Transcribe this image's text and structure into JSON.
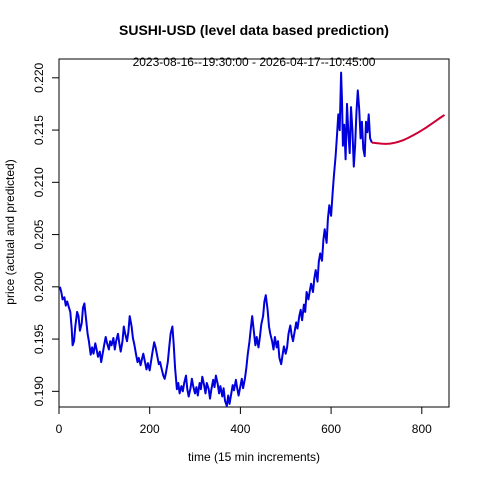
{
  "chart_data": {
    "type": "line",
    "title": "SUSHI-USD (level data based prediction)",
    "subtitle": "2023-08-16--19:30:00  -  2026-04-17--10:45:00",
    "xlabel": "time (15 min increments)",
    "ylabel": "price (actual and predicted)",
    "xlim": [
      0,
      860
    ],
    "ylim": [
      0.1885,
      0.2218
    ],
    "x_ticks": [
      0,
      200,
      400,
      600,
      800
    ],
    "x_tick_labels": [
      "0",
      "200",
      "400",
      "600",
      "800"
    ],
    "y_ticks": [
      0.19,
      0.195,
      0.2,
      0.205,
      0.21,
      0.215,
      0.22
    ],
    "y_tick_labels": [
      "0.190",
      "0.195",
      "0.200",
      "0.205",
      "0.210",
      "0.215",
      "0.220"
    ],
    "grid": false,
    "legend": "none",
    "series": [
      {
        "role": "actual",
        "color": "#0000dd",
        "points": [
          [
            2,
            0.2
          ],
          [
            5,
            0.1995
          ],
          [
            8,
            0.1988
          ],
          [
            12,
            0.199
          ],
          [
            15,
            0.1982
          ],
          [
            18,
            0.1986
          ],
          [
            22,
            0.198
          ],
          [
            25,
            0.1976
          ],
          [
            28,
            0.196
          ],
          [
            30,
            0.1944
          ],
          [
            33,
            0.1948
          ],
          [
            36,
            0.1962
          ],
          [
            40,
            0.1976
          ],
          [
            43,
            0.1972
          ],
          [
            46,
            0.1958
          ],
          [
            50,
            0.1965
          ],
          [
            53,
            0.198
          ],
          [
            56,
            0.1984
          ],
          [
            60,
            0.1968
          ],
          [
            63,
            0.1955
          ],
          [
            66,
            0.1948
          ],
          [
            70,
            0.1935
          ],
          [
            73,
            0.1942
          ],
          [
            76,
            0.1936
          ],
          [
            80,
            0.1946
          ],
          [
            83,
            0.194
          ],
          [
            86,
            0.1933
          ],
          [
            90,
            0.1938
          ],
          [
            93,
            0.1928
          ],
          [
            96,
            0.1935
          ],
          [
            100,
            0.1945
          ],
          [
            103,
            0.1952
          ],
          [
            106,
            0.1946
          ],
          [
            110,
            0.194
          ],
          [
            113,
            0.1948
          ],
          [
            116,
            0.1944
          ],
          [
            120,
            0.1951
          ],
          [
            123,
            0.194
          ],
          [
            126,
            0.1948
          ],
          [
            130,
            0.1955
          ],
          [
            133,
            0.1946
          ],
          [
            136,
            0.1938
          ],
          [
            140,
            0.1948
          ],
          [
            143,
            0.1962
          ],
          [
            146,
            0.1955
          ],
          [
            150,
            0.1948
          ],
          [
            153,
            0.1957
          ],
          [
            156,
            0.1972
          ],
          [
            160,
            0.1962
          ],
          [
            163,
            0.1951
          ],
          [
            166,
            0.1945
          ],
          [
            170,
            0.1935
          ],
          [
            173,
            0.1928
          ],
          [
            176,
            0.1932
          ],
          [
            180,
            0.1925
          ],
          [
            183,
            0.1931
          ],
          [
            186,
            0.1936
          ],
          [
            190,
            0.1927
          ],
          [
            193,
            0.1921
          ],
          [
            196,
            0.1927
          ],
          [
            200,
            0.192
          ],
          [
            203,
            0.1929
          ],
          [
            206,
            0.1937
          ],
          [
            210,
            0.1947
          ],
          [
            213,
            0.1942
          ],
          [
            216,
            0.1935
          ],
          [
            220,
            0.1926
          ],
          [
            223,
            0.1928
          ],
          [
            226,
            0.1922
          ],
          [
            230,
            0.1915
          ],
          [
            233,
            0.1912
          ],
          [
            236,
            0.1918
          ],
          [
            240,
            0.1928
          ],
          [
            243,
            0.1942
          ],
          [
            246,
            0.1955
          ],
          [
            250,
            0.1962
          ],
          [
            253,
            0.1945
          ],
          [
            256,
            0.1922
          ],
          [
            260,
            0.1902
          ],
          [
            263,
            0.1908
          ],
          [
            266,
            0.1898
          ],
          [
            270,
            0.1905
          ],
          [
            273,
            0.19
          ],
          [
            276,
            0.1908
          ],
          [
            280,
            0.1915
          ],
          [
            283,
            0.1902
          ],
          [
            286,
            0.1895
          ],
          [
            290,
            0.1903
          ],
          [
            293,
            0.1912
          ],
          [
            296,
            0.1905
          ],
          [
            300,
            0.1898
          ],
          [
            303,
            0.1904
          ],
          [
            306,
            0.1896
          ],
          [
            310,
            0.1908
          ],
          [
            313,
            0.1902
          ],
          [
            316,
            0.1914
          ],
          [
            320,
            0.1906
          ],
          [
            323,
            0.1898
          ],
          [
            326,
            0.1908
          ],
          [
            330,
            0.1902
          ],
          [
            333,
            0.1893
          ],
          [
            336,
            0.1902
          ],
          [
            340,
            0.1911
          ],
          [
            343,
            0.1904
          ],
          [
            346,
            0.1915
          ],
          [
            350,
            0.1907
          ],
          [
            353,
            0.1898
          ],
          [
            356,
            0.1905
          ],
          [
            360,
            0.1895
          ],
          [
            363,
            0.1903
          ],
          [
            366,
            0.1891
          ],
          [
            370,
            0.1886
          ],
          [
            373,
            0.1896
          ],
          [
            376,
            0.1888
          ],
          [
            380,
            0.1898
          ],
          [
            383,
            0.1906
          ],
          [
            386,
            0.1901
          ],
          [
            390,
            0.1911
          ],
          [
            393,
            0.1903
          ],
          [
            396,
            0.1896
          ],
          [
            400,
            0.1905
          ],
          [
            403,
            0.1912
          ],
          [
            406,
            0.1903
          ],
          [
            410,
            0.1912
          ],
          [
            413,
            0.1922
          ],
          [
            416,
            0.1935
          ],
          [
            420,
            0.1948
          ],
          [
            423,
            0.196
          ],
          [
            426,
            0.1972
          ],
          [
            430,
            0.1956
          ],
          [
            433,
            0.1944
          ],
          [
            436,
            0.1952
          ],
          [
            440,
            0.1942
          ],
          [
            443,
            0.1952
          ],
          [
            446,
            0.1964
          ],
          [
            450,
            0.1972
          ],
          [
            453,
            0.1986
          ],
          [
            456,
            0.1992
          ],
          [
            460,
            0.1978
          ],
          [
            463,
            0.1962
          ],
          [
            466,
            0.1955
          ],
          [
            470,
            0.1948
          ],
          [
            473,
            0.194
          ],
          [
            476,
            0.1952
          ],
          [
            480,
            0.1942
          ],
          [
            483,
            0.1948
          ],
          [
            486,
            0.1932
          ],
          [
            490,
            0.1926
          ],
          [
            493,
            0.1935
          ],
          [
            496,
            0.1943
          ],
          [
            500,
            0.1936
          ],
          [
            503,
            0.1942
          ],
          [
            506,
            0.1955
          ],
          [
            510,
            0.1963
          ],
          [
            513,
            0.1954
          ],
          [
            516,
            0.1948
          ],
          [
            520,
            0.1958
          ],
          [
            523,
            0.1966
          ],
          [
            526,
            0.196
          ],
          [
            530,
            0.1972
          ],
          [
            533,
            0.1978
          ],
          [
            536,
            0.1968
          ],
          [
            540,
            0.1983
          ],
          [
            543,
            0.1976
          ],
          [
            546,
            0.1995
          ],
          [
            550,
            0.1988
          ],
          [
            553,
            0.1996
          ],
          [
            556,
            0.2003
          ],
          [
            560,
            0.1995
          ],
          [
            563,
            0.2008
          ],
          [
            566,
            0.2016
          ],
          [
            570,
            0.2005
          ],
          [
            573,
            0.2024
          ],
          [
            576,
            0.2032
          ],
          [
            580,
            0.2025
          ],
          [
            583,
            0.2045
          ],
          [
            586,
            0.2055
          ],
          [
            590,
            0.2042
          ],
          [
            593,
            0.2065
          ],
          [
            596,
            0.2078
          ],
          [
            600,
            0.2068
          ],
          [
            603,
            0.2088
          ],
          [
            606,
            0.2105
          ],
          [
            610,
            0.2125
          ],
          [
            613,
            0.2145
          ],
          [
            616,
            0.2165
          ],
          [
            619,
            0.215
          ],
          [
            622,
            0.2205
          ],
          [
            624,
            0.2178
          ],
          [
            626,
            0.2135
          ],
          [
            629,
            0.2155
          ],
          [
            632,
            0.2122
          ],
          [
            635,
            0.2175
          ],
          [
            638,
            0.2148
          ],
          [
            641,
            0.2128
          ],
          [
            644,
            0.2172
          ],
          [
            647,
            0.215
          ],
          [
            650,
            0.2115
          ],
          [
            653,
            0.2135
          ],
          [
            656,
            0.2168
          ],
          [
            659,
            0.2188
          ],
          [
            662,
            0.217
          ],
          [
            665,
            0.2142
          ],
          [
            668,
            0.2158
          ],
          [
            671,
            0.2132
          ],
          [
            674,
            0.2125
          ],
          [
            677,
            0.2158
          ],
          [
            680,
            0.2148
          ],
          [
            683,
            0.2165
          ],
          [
            686,
            0.2142
          ],
          [
            690,
            0.2138
          ]
        ]
      },
      {
        "role": "predicted",
        "color": "#cc0033",
        "points": [
          [
            690,
            0.2138
          ],
          [
            700,
            0.21375
          ],
          [
            710,
            0.2137
          ],
          [
            720,
            0.21368
          ],
          [
            730,
            0.2137
          ],
          [
            740,
            0.21378
          ],
          [
            750,
            0.2139
          ],
          [
            760,
            0.21405
          ],
          [
            770,
            0.21425
          ],
          [
            780,
            0.21448
          ],
          [
            790,
            0.21472
          ],
          [
            800,
            0.21498
          ],
          [
            810,
            0.21525
          ],
          [
            820,
            0.21555
          ],
          [
            830,
            0.21585
          ],
          [
            840,
            0.21615
          ],
          [
            850,
            0.21645
          ]
        ]
      }
    ]
  }
}
